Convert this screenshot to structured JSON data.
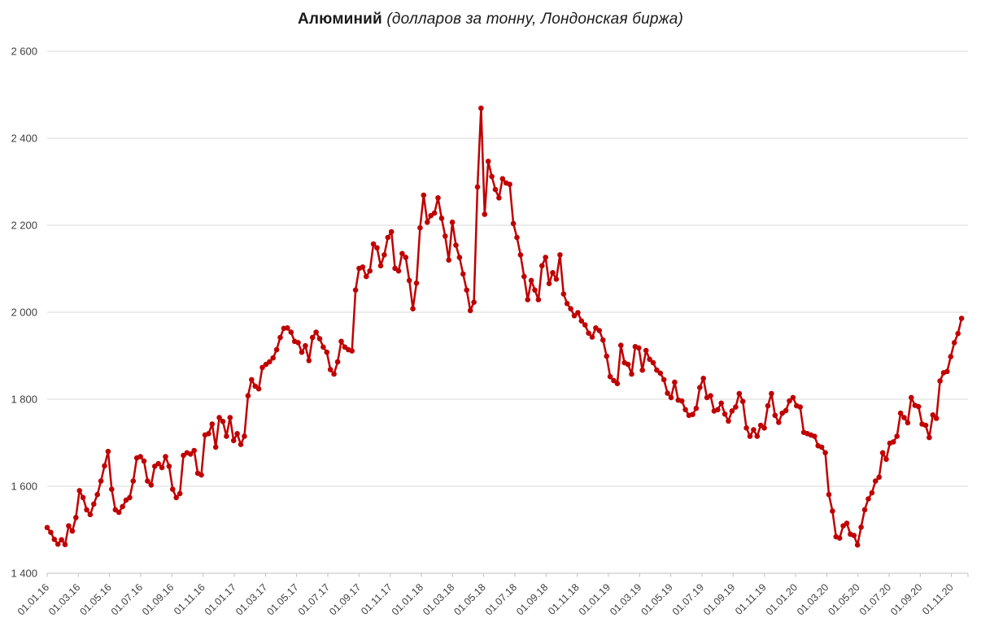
{
  "chart": {
    "title_bold": "Алюминий",
    "title_italic": " (долларов за тонну, Лондонская биржа)"
  },
  "chart_data": {
    "type": "line",
    "title": "Алюминий (долларов за тонну, Лондонская биржа)",
    "series": [
      {
        "name": "Алюминий",
        "color": "#C00000",
        "marker": "circle",
        "values": [
          1505,
          1494,
          1478,
          1467,
          1477,
          1466,
          1509,
          1497,
          1528,
          1590,
          1574,
          1546,
          1535,
          1559,
          1581,
          1612,
          1647,
          1680,
          1593,
          1546,
          1540,
          1553,
          1568,
          1574,
          1612,
          1665,
          1668,
          1658,
          1612,
          1603,
          1646,
          1652,
          1643,
          1668,
          1646,
          1593,
          1574,
          1583,
          1671,
          1677,
          1674,
          1682,
          1630,
          1626,
          1718,
          1721,
          1743,
          1690,
          1758,
          1749,
          1715,
          1758,
          1705,
          1721,
          1696,
          1715,
          1808,
          1845,
          1830,
          1824,
          1873,
          1880,
          1886,
          1895,
          1914,
          1942,
          1963,
          1964,
          1954,
          1933,
          1930,
          1908,
          1923,
          1889,
          1942,
          1954,
          1939,
          1920,
          1908,
          1868,
          1858,
          1886,
          1933,
          1920,
          1914,
          1911,
          2051,
          2101,
          2104,
          2082,
          2095,
          2157,
          2148,
          2107,
          2132,
          2172,
          2185,
          2101,
          2095,
          2135,
          2126,
          2073,
          2008,
          2067,
          2194,
          2269,
          2207,
          2222,
          2228,
          2263,
          2216,
          2175,
          2120,
          2207,
          2154,
          2126,
          2088,
          2051,
          2004,
          2023,
          2288,
          2469,
          2225,
          2347,
          2312,
          2282,
          2263,
          2307,
          2297,
          2294,
          2204,
          2172,
          2132,
          2082,
          2029,
          2073,
          2051,
          2029,
          2107,
          2126,
          2066,
          2091,
          2076,
          2132,
          2042,
          2020,
          2008,
          1992,
          1999,
          1980,
          1971,
          1952,
          1943,
          1964,
          1958,
          1936,
          1899,
          1852,
          1843,
          1836,
          1924,
          1884,
          1880,
          1858,
          1921,
          1918,
          1867,
          1912,
          1892,
          1884,
          1867,
          1860,
          1845,
          1814,
          1804,
          1839,
          1798,
          1796,
          1776,
          1763,
          1765,
          1779,
          1827,
          1848,
          1804,
          1808,
          1773,
          1776,
          1791,
          1766,
          1750,
          1773,
          1782,
          1813,
          1795,
          1734,
          1715,
          1730,
          1715,
          1740,
          1734,
          1785,
          1813,
          1763,
          1747,
          1768,
          1774,
          1796,
          1804,
          1785,
          1782,
          1724,
          1721,
          1718,
          1715,
          1693,
          1690,
          1677,
          1581,
          1543,
          1484,
          1481,
          1509,
          1515,
          1490,
          1487,
          1465,
          1506,
          1546,
          1571,
          1585,
          1612,
          1621,
          1677,
          1662,
          1699,
          1702,
          1715,
          1768,
          1758,
          1746,
          1804,
          1786,
          1783,
          1743,
          1740,
          1712,
          1764,
          1756,
          1842,
          1861,
          1864,
          1898,
          1930,
          1951,
          1986
        ]
      }
    ],
    "x_tick_labels": [
      "01.01.16",
      "01.03.16",
      "01.05.16",
      "01.07.16",
      "01.09.16",
      "01.11.16",
      "01.01.17",
      "01.03.17",
      "01.05.17",
      "01.07.17",
      "01.09.17",
      "01.11.17",
      "01.01.18",
      "01.03.18",
      "01.05.18",
      "01.07.18",
      "01.09.18",
      "01.11.18",
      "01.01.19",
      "01.03.19",
      "01.05.19",
      "01.07.19",
      "01.09.19",
      "01.11.19",
      "01.01.20",
      "01.03.20",
      "01.05.20",
      "01.07.20",
      "01.09.20",
      "01.11.20"
    ],
    "y_tick_labels": [
      "1 400",
      "1 600",
      "1 800",
      "2 000",
      "2 200",
      "2 400",
      "2 600"
    ],
    "y_tick_values": [
      1400,
      1600,
      1800,
      2000,
      2200,
      2400,
      2600
    ],
    "ylim": [
      1400,
      2600
    ],
    "y_step": 200,
    "xlabel": "",
    "ylabel": "",
    "grid": "horizontal",
    "legend": "none",
    "x_months_per_label": 2,
    "gridline_color": "#D9D9D9",
    "axis_line_color": "#BFBFBF",
    "axis_text_color": "#404040"
  }
}
